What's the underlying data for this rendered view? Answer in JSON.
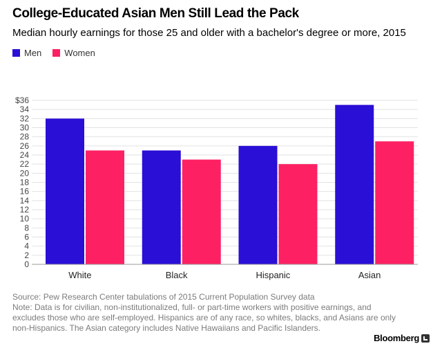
{
  "header": {
    "title": "College-Educated Asian Men Still Lead the Pack",
    "subtitle": "Median hourly earnings for those 25 and older with a bachelor's degree or more, 2015"
  },
  "colors": {
    "men": "#2a0fd6",
    "women": "#fd2163",
    "grid": "#e2e2e2",
    "axis": "#999999"
  },
  "chart_data": {
    "type": "bar",
    "title": "College-Educated Asian Men Still Lead the Pack",
    "subtitle": "Median hourly earnings for those 25 and older with a bachelor's degree or more, 2015",
    "xlabel": "",
    "ylabel": "",
    "ylim": [
      0,
      36
    ],
    "y_ticks": [
      0,
      2,
      4,
      6,
      8,
      10,
      12,
      14,
      16,
      18,
      20,
      22,
      24,
      26,
      28,
      30,
      32,
      34,
      36
    ],
    "y_top_tick_label": "$36",
    "grid": true,
    "legend_position": "top-left",
    "categories": [
      "White",
      "Black",
      "Hispanic",
      "Asian"
    ],
    "series": [
      {
        "name": "Men",
        "values": [
          32,
          25,
          26,
          35
        ]
      },
      {
        "name": "Women",
        "values": [
          25,
          23,
          22,
          27
        ]
      }
    ]
  },
  "footer": {
    "source": "Source: Pew Research Center tabulations of 2015 Current Population Survey data",
    "note": "Note: Data is for civilian, non-institutionalized, full- or part-time workers with positive earnings, and excludes those who are self-employed. Hispanics are of any race, so whites, blacks, and Asians are only non-Hispanics. The Asian category includes Native Hawaiians and Pacific Islanders.",
    "brand": "Bloomberg"
  }
}
